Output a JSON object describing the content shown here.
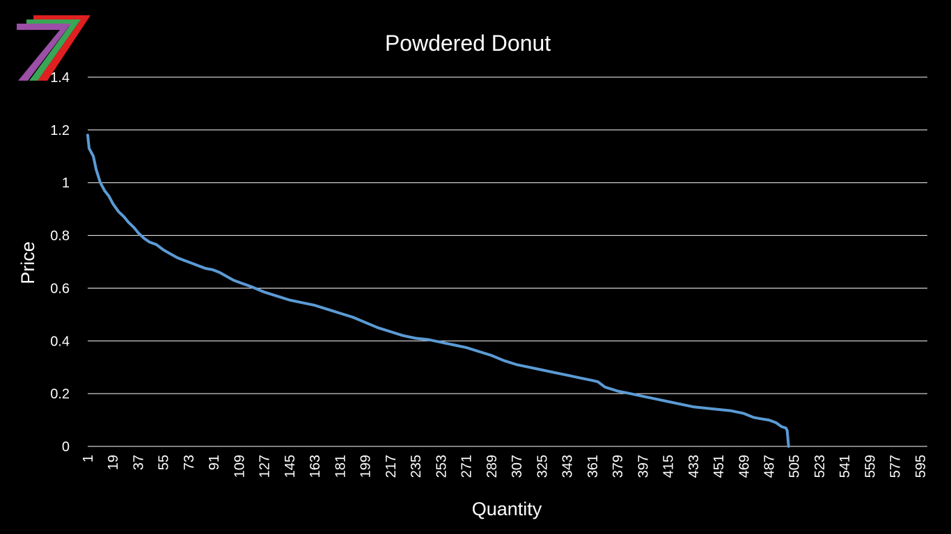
{
  "colors": {
    "background": "#000000",
    "text": "#ffffff",
    "gridline": "#ffffff",
    "series": "#5b9bd5",
    "logo_purple": "#9b4fa6",
    "logo_green": "#3aa655",
    "logo_red": "#e02020"
  },
  "logo": {
    "icon": "seven-stripes-logo-icon"
  },
  "chart_data": {
    "type": "line",
    "title": "Powdered Donut",
    "xlabel": "Quantity",
    "ylabel": "Price",
    "ylim": [
      0,
      1.4
    ],
    "yticks": [
      0,
      0.2,
      0.4,
      0.6,
      0.8,
      1,
      1.2,
      1.4
    ],
    "ytick_labels": [
      "0",
      "0.2",
      "0.4",
      "0.6",
      "0.8",
      "1",
      "1.2",
      "1.4"
    ],
    "xlim": [
      1,
      600
    ],
    "xtick_labels": [
      "1",
      "19",
      "37",
      "55",
      "73",
      "91",
      "109",
      "127",
      "145",
      "163",
      "181",
      "199",
      "217",
      "235",
      "253",
      "271",
      "289",
      "307",
      "325",
      "343",
      "361",
      "379",
      "397",
      "415",
      "433",
      "451",
      "469",
      "487",
      "505",
      "523",
      "541",
      "559",
      "577",
      "595"
    ],
    "grid": true,
    "legend": "none",
    "series": [
      {
        "x": [
          1,
          2,
          5,
          7,
          10,
          13,
          16,
          19,
          23,
          27,
          30,
          34,
          37,
          41,
          45,
          50,
          55,
          60,
          65,
          70,
          75,
          80,
          85,
          90,
          95,
          100,
          105,
          110,
          118,
          127,
          136,
          145,
          154,
          163,
          172,
          181,
          190,
          199,
          208,
          217,
          226,
          235,
          244,
          253,
          262,
          271,
          280,
          289,
          298,
          307,
          316,
          325,
          334,
          343,
          352,
          361,
          365,
          370,
          379,
          388,
          397,
          406,
          415,
          424,
          433,
          442,
          451,
          460,
          469,
          476,
          481,
          487,
          492,
          496,
          499,
          500,
          501
        ],
        "y": [
          1.18,
          1.13,
          1.1,
          1.05,
          1.0,
          0.97,
          0.95,
          0.92,
          0.89,
          0.87,
          0.85,
          0.83,
          0.81,
          0.79,
          0.775,
          0.765,
          0.745,
          0.73,
          0.715,
          0.705,
          0.695,
          0.685,
          0.675,
          0.67,
          0.66,
          0.645,
          0.63,
          0.62,
          0.605,
          0.585,
          0.57,
          0.555,
          0.545,
          0.535,
          0.52,
          0.505,
          0.49,
          0.47,
          0.45,
          0.435,
          0.42,
          0.41,
          0.405,
          0.395,
          0.385,
          0.375,
          0.36,
          0.345,
          0.325,
          0.31,
          0.3,
          0.29,
          0.28,
          0.27,
          0.26,
          0.25,
          0.245,
          0.225,
          0.21,
          0.2,
          0.19,
          0.18,
          0.17,
          0.16,
          0.15,
          0.145,
          0.14,
          0.135,
          0.125,
          0.11,
          0.105,
          0.1,
          0.09,
          0.075,
          0.07,
          0.06,
          0.0
        ]
      }
    ]
  }
}
